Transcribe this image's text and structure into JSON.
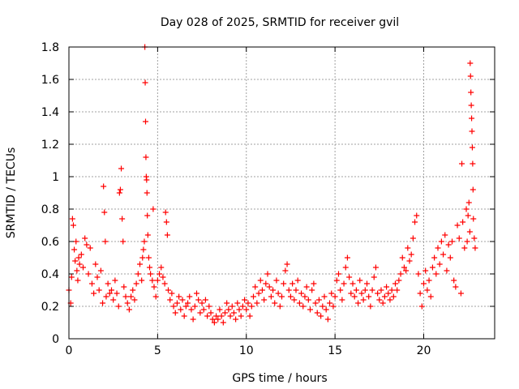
{
  "chart_data": {
    "type": "scatter",
    "title": "Day 028 of 2025, SRMTID for receiver gvil",
    "xlabel": "GPS time / hours",
    "ylabel": "SRMTID / TECUs",
    "xlim": [
      0,
      24
    ],
    "ylim": [
      0,
      1.8
    ],
    "x_ticks": [
      0,
      5,
      10,
      15,
      20
    ],
    "x_tick_labels": [
      "0",
      "5",
      "10",
      "15",
      "20"
    ],
    "y_ticks": [
      0,
      0.2,
      0.4,
      0.6,
      0.8,
      1,
      1.2,
      1.4,
      1.6,
      1.8
    ],
    "y_tick_labels": [
      "0",
      "0.2",
      "0.4",
      "0.6",
      "0.8",
      "1",
      "1.2",
      "1.4",
      "1.6",
      "1.8"
    ],
    "grid": true,
    "marker": "+",
    "marker_color": "#ff0000",
    "points": [
      [
        0.0,
        0.3
      ],
      [
        0.1,
        0.22
      ],
      [
        0.15,
        0.38
      ],
      [
        0.2,
        0.74
      ],
      [
        0.25,
        0.7
      ],
      [
        0.3,
        0.55
      ],
      [
        0.35,
        0.48
      ],
      [
        0.4,
        0.6
      ],
      [
        0.45,
        0.42
      ],
      [
        0.5,
        0.36
      ],
      [
        0.55,
        0.5
      ],
      [
        0.6,
        0.46
      ],
      [
        0.7,
        0.52
      ],
      [
        0.8,
        0.44
      ],
      [
        0.9,
        0.62
      ],
      [
        1.0,
        0.58
      ],
      [
        1.1,
        0.4
      ],
      [
        1.2,
        0.56
      ],
      [
        1.3,
        0.34
      ],
      [
        1.4,
        0.28
      ],
      [
        1.5,
        0.46
      ],
      [
        1.6,
        0.38
      ],
      [
        1.7,
        0.3
      ],
      [
        1.8,
        0.42
      ],
      [
        1.9,
        0.22
      ],
      [
        1.95,
        0.94
      ],
      [
        2.0,
        0.78
      ],
      [
        2.05,
        0.6
      ],
      [
        2.1,
        0.26
      ],
      [
        2.2,
        0.34
      ],
      [
        2.3,
        0.28
      ],
      [
        2.4,
        0.3
      ],
      [
        2.5,
        0.24
      ],
      [
        2.6,
        0.36
      ],
      [
        2.7,
        0.28
      ],
      [
        2.8,
        0.2
      ],
      [
        2.85,
        0.9
      ],
      [
        2.9,
        0.92
      ],
      [
        2.95,
        1.05
      ],
      [
        3.0,
        0.74
      ],
      [
        3.05,
        0.6
      ],
      [
        3.1,
        0.32
      ],
      [
        3.2,
        0.26
      ],
      [
        3.3,
        0.22
      ],
      [
        3.4,
        0.18
      ],
      [
        3.5,
        0.26
      ],
      [
        3.6,
        0.3
      ],
      [
        3.7,
        0.24
      ],
      [
        3.8,
        0.34
      ],
      [
        3.9,
        0.4
      ],
      [
        4.0,
        0.46
      ],
      [
        4.1,
        0.36
      ],
      [
        4.15,
        0.5
      ],
      [
        4.2,
        0.55
      ],
      [
        4.25,
        0.6
      ],
      [
        4.28,
        1.8
      ],
      [
        4.3,
        1.58
      ],
      [
        4.32,
        1.34
      ],
      [
        4.34,
        1.12
      ],
      [
        4.36,
        1.0
      ],
      [
        4.38,
        0.98
      ],
      [
        4.4,
        0.9
      ],
      [
        4.42,
        0.76
      ],
      [
        4.45,
        0.64
      ],
      [
        4.5,
        0.5
      ],
      [
        4.55,
        0.44
      ],
      [
        4.6,
        0.4
      ],
      [
        4.7,
        0.36
      ],
      [
        4.75,
        0.8
      ],
      [
        4.8,
        0.32
      ],
      [
        4.9,
        0.26
      ],
      [
        5.0,
        0.36
      ],
      [
        5.1,
        0.4
      ],
      [
        5.2,
        0.44
      ],
      [
        5.3,
        0.38
      ],
      [
        5.4,
        0.34
      ],
      [
        5.45,
        0.78
      ],
      [
        5.5,
        0.72
      ],
      [
        5.55,
        0.64
      ],
      [
        5.6,
        0.3
      ],
      [
        5.7,
        0.24
      ],
      [
        5.8,
        0.28
      ],
      [
        5.9,
        0.2
      ],
      [
        6.0,
        0.16
      ],
      [
        6.1,
        0.22
      ],
      [
        6.2,
        0.26
      ],
      [
        6.3,
        0.18
      ],
      [
        6.4,
        0.24
      ],
      [
        6.5,
        0.14
      ],
      [
        6.6,
        0.2
      ],
      [
        6.7,
        0.22
      ],
      [
        6.8,
        0.26
      ],
      [
        6.9,
        0.18
      ],
      [
        7.0,
        0.12
      ],
      [
        7.1,
        0.2
      ],
      [
        7.2,
        0.28
      ],
      [
        7.3,
        0.24
      ],
      [
        7.4,
        0.16
      ],
      [
        7.5,
        0.22
      ],
      [
        7.6,
        0.18
      ],
      [
        7.7,
        0.24
      ],
      [
        7.8,
        0.14
      ],
      [
        7.9,
        0.2
      ],
      [
        8.0,
        0.16
      ],
      [
        8.1,
        0.12
      ],
      [
        8.2,
        0.1
      ],
      [
        8.3,
        0.14
      ],
      [
        8.4,
        0.12
      ],
      [
        8.5,
        0.18
      ],
      [
        8.6,
        0.14
      ],
      [
        8.7,
        0.1
      ],
      [
        8.8,
        0.16
      ],
      [
        8.9,
        0.22
      ],
      [
        9.0,
        0.18
      ],
      [
        9.1,
        0.14
      ],
      [
        9.2,
        0.2
      ],
      [
        9.3,
        0.16
      ],
      [
        9.4,
        0.12
      ],
      [
        9.5,
        0.22
      ],
      [
        9.6,
        0.18
      ],
      [
        9.7,
        0.14
      ],
      [
        9.8,
        0.2
      ],
      [
        9.9,
        0.24
      ],
      [
        10.0,
        0.18
      ],
      [
        10.1,
        0.22
      ],
      [
        10.2,
        0.14
      ],
      [
        10.3,
        0.2
      ],
      [
        10.4,
        0.26
      ],
      [
        10.5,
        0.32
      ],
      [
        10.6,
        0.22
      ],
      [
        10.7,
        0.28
      ],
      [
        10.8,
        0.36
      ],
      [
        10.9,
        0.3
      ],
      [
        11.0,
        0.24
      ],
      [
        11.1,
        0.34
      ],
      [
        11.2,
        0.4
      ],
      [
        11.3,
        0.32
      ],
      [
        11.4,
        0.26
      ],
      [
        11.5,
        0.3
      ],
      [
        11.6,
        0.22
      ],
      [
        11.7,
        0.36
      ],
      [
        11.8,
        0.28
      ],
      [
        11.9,
        0.2
      ],
      [
        12.0,
        0.26
      ],
      [
        12.1,
        0.34
      ],
      [
        12.2,
        0.42
      ],
      [
        12.3,
        0.46
      ],
      [
        12.4,
        0.3
      ],
      [
        12.5,
        0.26
      ],
      [
        12.6,
        0.34
      ],
      [
        12.7,
        0.24
      ],
      [
        12.8,
        0.3
      ],
      [
        12.9,
        0.36
      ],
      [
        13.0,
        0.22
      ],
      [
        13.1,
        0.28
      ],
      [
        13.2,
        0.2
      ],
      [
        13.3,
        0.26
      ],
      [
        13.4,
        0.32
      ],
      [
        13.5,
        0.24
      ],
      [
        13.6,
        0.18
      ],
      [
        13.7,
        0.3
      ],
      [
        13.8,
        0.34
      ],
      [
        13.9,
        0.22
      ],
      [
        14.0,
        0.16
      ],
      [
        14.1,
        0.24
      ],
      [
        14.2,
        0.14
      ],
      [
        14.3,
        0.2
      ],
      [
        14.4,
        0.26
      ],
      [
        14.5,
        0.18
      ],
      [
        14.6,
        0.12
      ],
      [
        14.7,
        0.22
      ],
      [
        14.8,
        0.28
      ],
      [
        14.9,
        0.2
      ],
      [
        15.0,
        0.26
      ],
      [
        15.1,
        0.36
      ],
      [
        15.2,
        0.4
      ],
      [
        15.3,
        0.3
      ],
      [
        15.4,
        0.24
      ],
      [
        15.5,
        0.34
      ],
      [
        15.6,
        0.44
      ],
      [
        15.7,
        0.5
      ],
      [
        15.8,
        0.38
      ],
      [
        15.9,
        0.28
      ],
      [
        16.0,
        0.34
      ],
      [
        16.1,
        0.26
      ],
      [
        16.2,
        0.3
      ],
      [
        16.3,
        0.22
      ],
      [
        16.4,
        0.36
      ],
      [
        16.5,
        0.28
      ],
      [
        16.6,
        0.24
      ],
      [
        16.7,
        0.3
      ],
      [
        16.8,
        0.34
      ],
      [
        16.9,
        0.26
      ],
      [
        17.0,
        0.2
      ],
      [
        17.1,
        0.3
      ],
      [
        17.2,
        0.38
      ],
      [
        17.3,
        0.44
      ],
      [
        17.4,
        0.28
      ],
      [
        17.5,
        0.24
      ],
      [
        17.6,
        0.3
      ],
      [
        17.7,
        0.22
      ],
      [
        17.8,
        0.26
      ],
      [
        17.9,
        0.32
      ],
      [
        18.0,
        0.28
      ],
      [
        18.1,
        0.24
      ],
      [
        18.2,
        0.3
      ],
      [
        18.3,
        0.26
      ],
      [
        18.4,
        0.34
      ],
      [
        18.5,
        0.3
      ],
      [
        18.6,
        0.36
      ],
      [
        18.7,
        0.4
      ],
      [
        18.8,
        0.5
      ],
      [
        18.9,
        0.44
      ],
      [
        19.0,
        0.42
      ],
      [
        19.1,
        0.56
      ],
      [
        19.2,
        0.48
      ],
      [
        19.3,
        0.52
      ],
      [
        19.4,
        0.62
      ],
      [
        19.5,
        0.72
      ],
      [
        19.6,
        0.76
      ],
      [
        19.7,
        0.4
      ],
      [
        19.8,
        0.28
      ],
      [
        19.9,
        0.2
      ],
      [
        20.0,
        0.34
      ],
      [
        20.1,
        0.42
      ],
      [
        20.2,
        0.3
      ],
      [
        20.3,
        0.36
      ],
      [
        20.4,
        0.26
      ],
      [
        20.5,
        0.44
      ],
      [
        20.6,
        0.5
      ],
      [
        20.7,
        0.4
      ],
      [
        20.8,
        0.56
      ],
      [
        20.9,
        0.46
      ],
      [
        21.0,
        0.6
      ],
      [
        21.1,
        0.52
      ],
      [
        21.2,
        0.64
      ],
      [
        21.3,
        0.42
      ],
      [
        21.4,
        0.58
      ],
      [
        21.5,
        0.5
      ],
      [
        21.6,
        0.6
      ],
      [
        21.7,
        0.36
      ],
      [
        21.8,
        0.32
      ],
      [
        21.9,
        0.7
      ],
      [
        22.0,
        0.62
      ],
      [
        22.1,
        0.28
      ],
      [
        22.15,
        1.08
      ],
      [
        22.2,
        0.72
      ],
      [
        22.3,
        0.56
      ],
      [
        22.4,
        0.8
      ],
      [
        22.45,
        0.6
      ],
      [
        22.5,
        0.76
      ],
      [
        22.55,
        0.84
      ],
      [
        22.6,
        0.66
      ],
      [
        22.62,
        1.7
      ],
      [
        22.64,
        1.62
      ],
      [
        22.66,
        1.52
      ],
      [
        22.68,
        1.44
      ],
      [
        22.7,
        1.36
      ],
      [
        22.72,
        1.28
      ],
      [
        22.74,
        1.18
      ],
      [
        22.76,
        1.08
      ],
      [
        22.78,
        0.92
      ],
      [
        22.8,
        0.74
      ],
      [
        22.85,
        0.62
      ],
      [
        22.9,
        0.56
      ]
    ]
  }
}
